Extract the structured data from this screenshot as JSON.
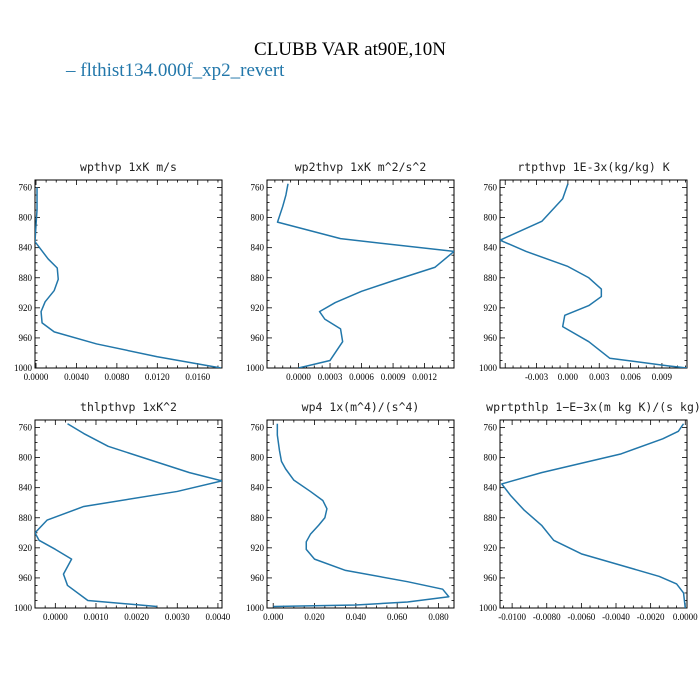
{
  "title": "CLUBB VAR at90E,10N",
  "legend": {
    "label": "– flthist134.000f_xp2_revert",
    "color": "#2277aa"
  },
  "line_color": "#2277aa",
  "chart_data": [
    {
      "type": "line",
      "title": "wpthvp  1xK m/s",
      "xlim": [
        -0.0001,
        0.0184
      ],
      "ylim": [
        1000,
        750
      ],
      "xticks": [
        0,
        0.004,
        0.008,
        0.012,
        0.016
      ],
      "xticklabels": [
        "0.0000",
        "0.0040",
        "0.0080",
        "0.0120",
        "0.0160"
      ],
      "yticks": [
        760,
        800,
        840,
        880,
        920,
        960,
        1000
      ],
      "yticklabels": [
        "760",
        "800",
        "840",
        "880",
        "920",
        "960",
        "1000"
      ],
      "series": [
        {
          "x": [
            0.0001,
            0.0001,
            0.0001,
            0.0,
            -0.0001,
            0.0012,
            0.0021,
            0.0022,
            0.0018,
            0.0009,
            0.0005,
            0.0006,
            0.0018,
            0.006,
            0.012,
            0.0183
          ],
          "y": [
            760,
            775,
            790,
            810,
            832,
            855,
            867,
            882,
            897,
            912,
            925,
            940,
            952,
            968,
            985,
            1000
          ]
        }
      ]
    },
    {
      "type": "line",
      "title": "wp2thvp  1xK m^2/s^2",
      "xlim": [
        -0.0003,
        0.00148
      ],
      "ylim": [
        1000,
        750
      ],
      "xticks": [
        0,
        0.0003,
        0.0006,
        0.0009,
        0.0012
      ],
      "xticklabels": [
        "0.0000",
        "0.0003",
        "0.0006",
        "0.0009",
        "0.0012"
      ],
      "yticks": [
        760,
        800,
        840,
        880,
        920,
        960,
        1000
      ],
      "yticklabels": [
        "760",
        "800",
        "840",
        "880",
        "920",
        "960",
        "1000"
      ],
      "series": [
        {
          "x": [
            -0.0001,
            -0.00012,
            -0.00015,
            -0.0002,
            0.0004,
            0.00148,
            0.0013,
            0.0009,
            0.0006,
            0.00035,
            0.0002,
            0.00025,
            0.0004,
            0.00042,
            0.0003,
            0.0
          ],
          "y": [
            755,
            770,
            785,
            806,
            828,
            845,
            866,
            884,
            898,
            913,
            925,
            935,
            948,
            965,
            990,
            1000
          ]
        }
      ]
    },
    {
      "type": "line",
      "title": "rtpthvp  1E-3x(kg/kg) K",
      "xlim": [
        -0.0065,
        0.0114
      ],
      "ylim": [
        1000,
        750
      ],
      "xticks": [
        -0.003,
        0,
        0.003,
        0.006,
        0.009
      ],
      "xticklabels": [
        "-0.003",
        "0.000",
        "0.003",
        "0.006",
        "0.009"
      ],
      "yticks": [
        760,
        800,
        840,
        880,
        920,
        960,
        1000
      ],
      "yticklabels": [
        "760",
        "800",
        "840",
        "880",
        "920",
        "960",
        "1000"
      ],
      "series": [
        {
          "x": [
            0.0,
            -0.0005,
            -0.0025,
            -0.0065,
            -0.004,
            0.0,
            0.002,
            0.0032,
            0.0032,
            0.002,
            -0.0003,
            -0.0005,
            0.002,
            0.004,
            0.0095,
            0.0114
          ],
          "y": [
            755,
            775,
            805,
            830,
            845,
            865,
            880,
            895,
            905,
            917,
            930,
            945,
            965,
            987,
            997,
            1000
          ]
        }
      ]
    },
    {
      "type": "line",
      "title": "thlpthvp  1xK^2",
      "xlim": [
        -0.0005,
        0.0041
      ],
      "ylim": [
        1000,
        750
      ],
      "xticks": [
        0,
        0.001,
        0.002,
        0.003,
        0.004
      ],
      "xticklabels": [
        "0.0000",
        "0.0010",
        "0.0020",
        "0.0030",
        "0.0040"
      ],
      "yticks": [
        760,
        800,
        840,
        880,
        920,
        960,
        1000
      ],
      "yticklabels": [
        "760",
        "800",
        "840",
        "880",
        "920",
        "960",
        "1000"
      ],
      "series": [
        {
          "x": [
            0.0003,
            0.0007,
            0.0013,
            0.0025,
            0.0033,
            0.0041,
            0.003,
            0.0007,
            -0.0002,
            -0.0005,
            -0.0004,
            0.0,
            0.0004,
            0.0002,
            0.0003,
            0.0008,
            0.0025
          ],
          "y": [
            755,
            768,
            785,
            806,
            820,
            831,
            845,
            865,
            883,
            900,
            910,
            922,
            935,
            955,
            970,
            990,
            998
          ]
        }
      ]
    },
    {
      "type": "line",
      "title": "wp4  1x(m^4)/(s^4)",
      "xlim": [
        -0.003,
        0.0875
      ],
      "ylim": [
        1000,
        750
      ],
      "xticks": [
        0,
        0.02,
        0.04,
        0.06,
        0.08
      ],
      "xticklabels": [
        "0.000",
        "0.020",
        "0.040",
        "0.060",
        "0.080"
      ],
      "yticks": [
        760,
        800,
        840,
        880,
        920,
        960,
        1000
      ],
      "yticklabels": [
        "760",
        "800",
        "840",
        "880",
        "920",
        "960",
        "1000"
      ],
      "series": [
        {
          "x": [
            0.002,
            0.002,
            0.003,
            0.004,
            0.006,
            0.01,
            0.018,
            0.024,
            0.026,
            0.025,
            0.022,
            0.018,
            0.016,
            0.016,
            0.02,
            0.035,
            0.065,
            0.082,
            0.085,
            0.065,
            0.04,
            0.0
          ],
          "y": [
            755,
            770,
            790,
            805,
            815,
            830,
            845,
            857,
            868,
            880,
            890,
            902,
            912,
            922,
            935,
            950,
            965,
            975,
            985,
            992,
            996,
            998
          ]
        }
      ]
    },
    {
      "type": "line",
      "title": "wprtpthlp  1−E−3x(m kg K)/(s kg)",
      "xlim": [
        -0.0107,
        0.0001
      ],
      "ylim": [
        1000,
        750
      ],
      "xticks": [
        -0.01,
        -0.008,
        -0.006,
        -0.004,
        -0.002,
        0
      ],
      "xticklabels": [
        "-0.0100",
        "-0.0080",
        "-0.0060",
        "-0.0040",
        "-0.0020",
        "0.0000"
      ],
      "yticks": [
        760,
        800,
        840,
        880,
        920,
        960,
        1000
      ],
      "yticklabels": [
        "760",
        "800",
        "840",
        "880",
        "920",
        "960",
        "1000"
      ],
      "series": [
        {
          "x": [
            -0.0001,
            -0.0004,
            -0.0013,
            -0.0037,
            -0.0083,
            -0.0106,
            -0.0101,
            -0.0093,
            -0.0083,
            -0.0076,
            -0.006,
            -0.003,
            -0.0015,
            -0.0005,
            -0.0001,
            0.0
          ],
          "y": [
            755,
            765,
            775,
            795,
            820,
            835,
            850,
            870,
            890,
            910,
            928,
            948,
            958,
            968,
            980,
            1000
          ]
        }
      ]
    }
  ]
}
